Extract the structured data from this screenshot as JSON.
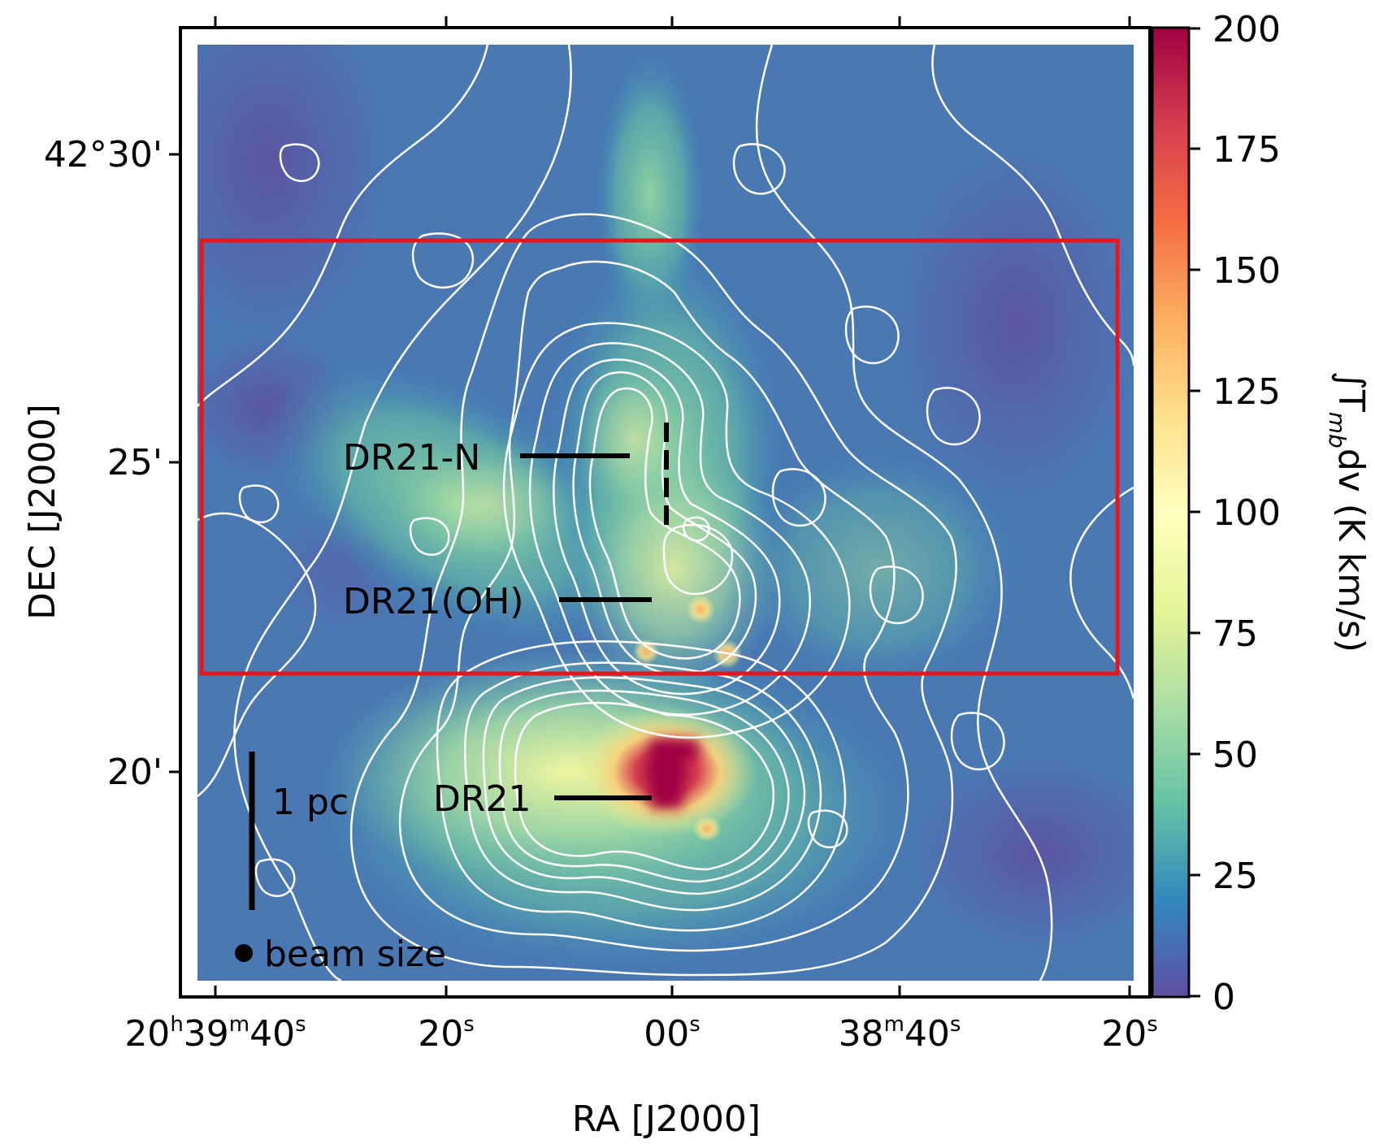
{
  "figure": {
    "x_axis": {
      "title": "RA [J2000]",
      "ticks": [
        {
          "main": "20",
          "sup1": "h",
          "mid": "39",
          "sup2": "m",
          "end": "40",
          "sup3": "s"
        },
        {
          "main": "20",
          "sup1": "s"
        },
        {
          "main": "00",
          "sup1": "s"
        },
        {
          "main": "38",
          "sup1": "m",
          "mid": "40",
          "sup2": "s"
        },
        {
          "main": "20",
          "sup1": "s"
        }
      ]
    },
    "y_axis": {
      "title": "DEC [J2000]",
      "ticks": [
        "42°30'",
        "25'",
        "20'"
      ]
    },
    "colorbar": {
      "label_main": "∫T",
      "label_sub": "mb",
      "label_rest": "dv (K km/s)",
      "ticks": [
        "0",
        "25",
        "50",
        "75",
        "100",
        "125",
        "150",
        "175",
        "200"
      ],
      "range": [
        0,
        200
      ],
      "colormap": "Spectral_r"
    },
    "annotations": {
      "dr21n": "DR21-N",
      "dr21oh": "DR21(OH)",
      "dr21": "DR21",
      "scale_bar": "1 pc",
      "beam": "beam size"
    },
    "colors": {
      "region_box": "#e8161b",
      "contours": "#ffffff",
      "background_low": "#4e6fb0",
      "peak": "#9e0142"
    }
  }
}
